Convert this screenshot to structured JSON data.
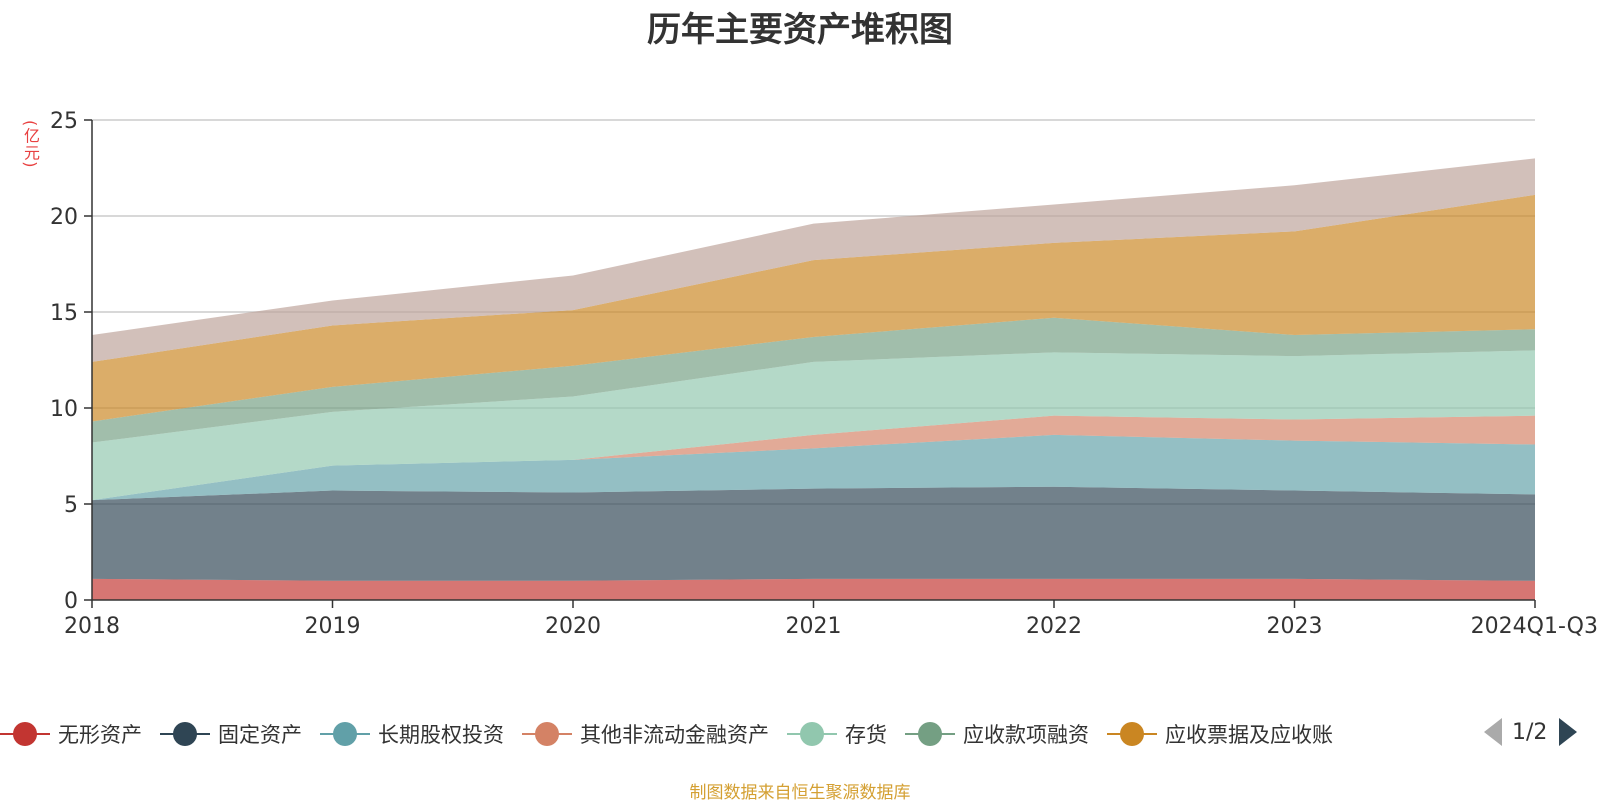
{
  "title": "历年主要资产堆积图",
  "unit_label": "(亿元)",
  "source": "制图数据来自恒生聚源数据库",
  "pager": {
    "text": "1/2"
  },
  "chart_data": {
    "type": "area",
    "stacked": true,
    "title": "历年主要资产堆积图",
    "ylabel": "(亿元)",
    "ylim": [
      0,
      25
    ],
    "yticks": [
      0,
      5,
      10,
      15,
      20,
      25
    ],
    "grid": true,
    "legend_position": "bottom",
    "categories": [
      "2018",
      "2019",
      "2020",
      "2021",
      "2022",
      "2023",
      "2024Q1-Q3"
    ],
    "series": [
      {
        "name": "无形资产",
        "color": "#c23531",
        "values": [
          1.1,
          1.0,
          1.0,
          1.1,
          1.1,
          1.1,
          1.0
        ]
      },
      {
        "name": "固定资产",
        "color": "#2f4554",
        "values": [
          4.1,
          4.7,
          4.6,
          4.7,
          4.8,
          4.6,
          4.5
        ]
      },
      {
        "name": "长期股权投资",
        "color": "#61a0a8",
        "values": [
          0.0,
          1.3,
          1.7,
          2.1,
          2.7,
          2.6,
          2.6
        ]
      },
      {
        "name": "其他非流动金融资产",
        "color": "#d48265",
        "values": [
          0.0,
          0.0,
          0.0,
          0.7,
          1.0,
          1.1,
          1.5
        ]
      },
      {
        "name": "存货",
        "color": "#91c7ae",
        "values": [
          3.0,
          2.8,
          3.3,
          3.8,
          3.3,
          3.3,
          3.4
        ]
      },
      {
        "name": "应收款项融资",
        "color": "#749f83",
        "values": [
          1.1,
          1.3,
          1.6,
          1.3,
          1.8,
          1.1,
          1.1
        ]
      },
      {
        "name": "应收票据及应收账",
        "color": "#ca8622",
        "values": [
          3.1,
          3.2,
          2.9,
          4.0,
          3.9,
          5.4,
          7.0
        ]
      },
      {
        "name": "",
        "color": "#bda29a",
        "values": [
          1.4,
          1.3,
          1.8,
          1.9,
          2.0,
          2.4,
          1.9
        ]
      }
    ]
  }
}
